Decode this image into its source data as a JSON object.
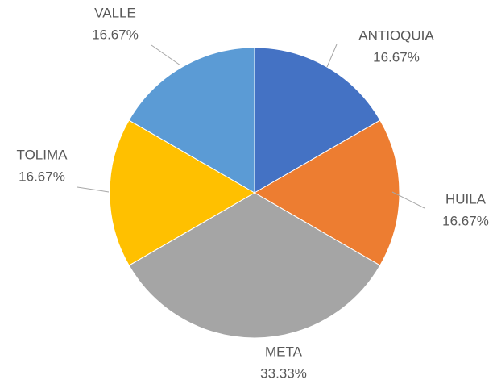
{
  "chart_data": {
    "type": "pie",
    "categories": [
      "ANTIOQUIA",
      "HUILA",
      "META",
      "TOLIMA",
      "VALLE"
    ],
    "values": [
      16.67,
      16.67,
      33.33,
      16.67,
      16.67
    ],
    "value_labels": [
      "16.67%",
      "16.67%",
      "33.33%",
      "16.67%",
      "16.67%"
    ],
    "colors": [
      "#4472c4",
      "#ed7d31",
      "#a5a5a5",
      "#ffc000",
      "#5b9bd5"
    ]
  }
}
